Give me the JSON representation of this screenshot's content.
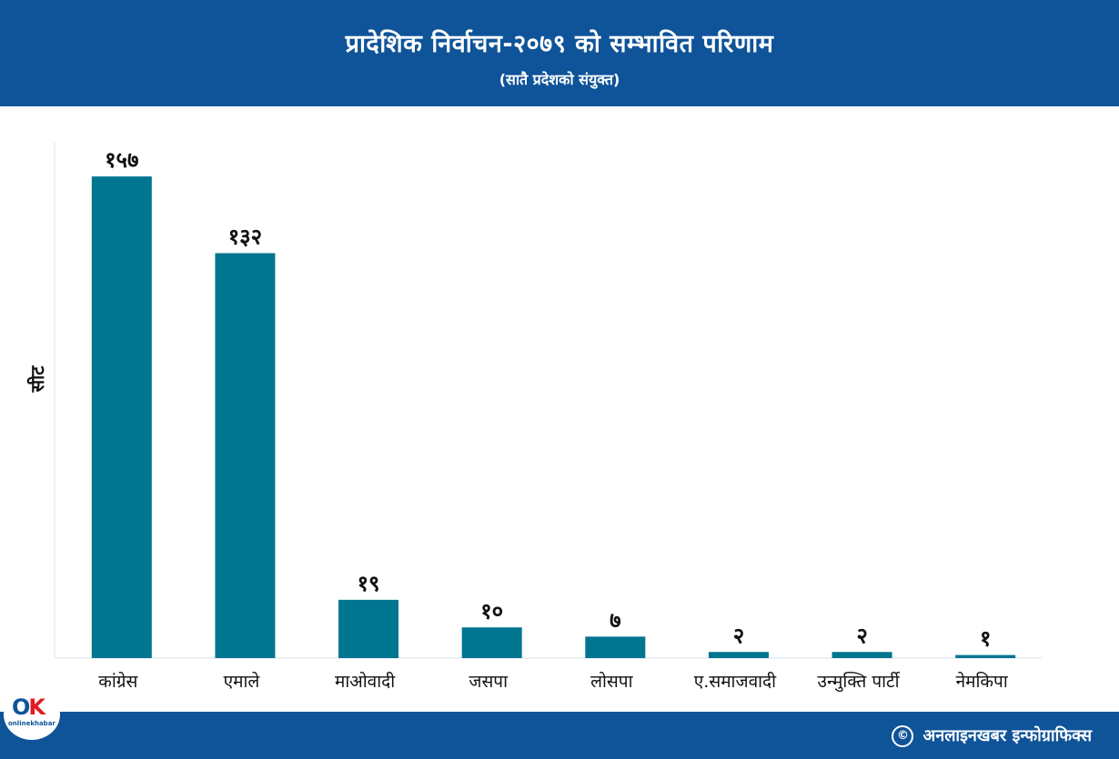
{
  "header": {
    "title": "प्रादेशिक निर्वाचन-२०७९ को सम्भावित परिणाम",
    "subtitle": "(सातै प्रदेशको संयुक्त)"
  },
  "chart_data": {
    "type": "bar",
    "categories": [
      "कांग्रेस",
      "एमाले",
      "माओवादी",
      "जसपा",
      "लोसपा",
      "ए.समाजवादी",
      "उन्मुक्ति  पार्टी",
      "नेमकिपा"
    ],
    "values": [
      157,
      132,
      19,
      10,
      7,
      2,
      2,
      1
    ],
    "value_labels": [
      "१५७",
      "१३२",
      "१९",
      "१०",
      "७",
      "२",
      "२",
      "१"
    ],
    "ylabel": "सीट",
    "xlabel": "",
    "ylim": [
      0,
      168
    ],
    "bar_color": "#00758f",
    "grid": false
  },
  "footer": {
    "credit": "अनलाइनखबर इन्फोग्राफिक्स",
    "copyright_symbol": "©"
  },
  "logo": {
    "mark_o": "O",
    "mark_k": "K",
    "brand": "onlinekhabar"
  },
  "colors": {
    "header_bg": "#0f5499",
    "bar": "#00758f",
    "text": "#111111"
  }
}
